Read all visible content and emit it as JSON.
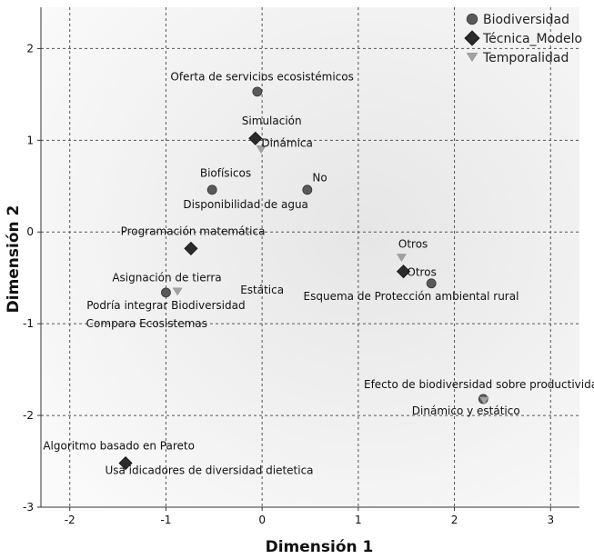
{
  "chart_data": {
    "type": "scatter",
    "xlabel": "Dimensión 1",
    "ylabel": "Dimensión 2",
    "xlim": [
      -2.3,
      3.3
    ],
    "ylim": [
      -3.0,
      2.45
    ],
    "xticks": [
      -2,
      -1,
      0,
      1,
      2,
      3
    ],
    "yticks": [
      2,
      1,
      0,
      -1,
      -2,
      -3
    ],
    "grid": true,
    "legend_position": "top-right",
    "series": [
      {
        "name": "Biodiversidad",
        "marker": "circle",
        "color": "#5a5a5a",
        "points": [
          {
            "x": -0.05,
            "y": 1.53
          },
          {
            "x": -0.52,
            "y": 0.46
          },
          {
            "x": 0.47,
            "y": 0.46
          },
          {
            "x": -1.0,
            "y": -0.66
          },
          {
            "x": 1.76,
            "y": -0.56
          },
          {
            "x": 2.3,
            "y": -1.82
          }
        ]
      },
      {
        "name": "Técnica_Modelo",
        "marker": "diamond",
        "color": "#2b2b2b",
        "points": [
          {
            "x": -0.07,
            "y": 1.02
          },
          {
            "x": -0.74,
            "y": -0.18
          },
          {
            "x": 1.47,
            "y": -0.43
          },
          {
            "x": -1.42,
            "y": -2.52
          }
        ]
      },
      {
        "name": "Temporalidad",
        "marker": "triangle-down",
        "color": "#a2a2a2",
        "points": [
          {
            "x": -0.01,
            "y": 0.9
          },
          {
            "x": -0.88,
            "y": -0.65
          },
          {
            "x": 1.45,
            "y": -0.28
          },
          {
            "x": 2.31,
            "y": -1.84
          }
        ]
      }
    ],
    "annotations": [
      {
        "text": "Oferta de servicios ecosistémicos",
        "x": 0.0,
        "y": 1.65
      },
      {
        "text": "Simulación",
        "x": 0.1,
        "y": 1.17
      },
      {
        "text": "Dinámica",
        "x": 0.26,
        "y": 0.93
      },
      {
        "text": "Biofísicos",
        "x": -0.38,
        "y": 0.6
      },
      {
        "text": "No",
        "x": 0.6,
        "y": 0.55
      },
      {
        "text": "Disponibilidad de agua",
        "x": -0.17,
        "y": 0.26
      },
      {
        "text": "Programación matemática",
        "x": -0.72,
        "y": -0.03
      },
      {
        "text": "Otros",
        "x": 1.57,
        "y": -0.17
      },
      {
        "text": "Otros",
        "x": 1.66,
        "y": -0.48
      },
      {
        "text": "Asignación de tierra",
        "x": -0.99,
        "y": -0.54
      },
      {
        "text": "Estática",
        "x": 0.0,
        "y": -0.67
      },
      {
        "text": "Esquema de Protección ambiental rural",
        "x": 1.55,
        "y": -0.74
      },
      {
        "text": "Podría integrar Biodiversidad",
        "x": -1.0,
        "y": -0.84
      },
      {
        "text": "Compara Ecosistemas",
        "x": -1.2,
        "y": -1.04
      },
      {
        "text": "Efecto de biodiversidad sobre productividad",
        "x": 2.31,
        "y": -1.7
      },
      {
        "text": "Dinámico y estático",
        "x": 2.12,
        "y": -1.99
      },
      {
        "text": "Algoritmo basado en Pareto",
        "x": -1.49,
        "y": -2.37
      },
      {
        "text": "Usa idicadores de diversidad dietetica",
        "x": -0.55,
        "y": -2.64
      }
    ]
  }
}
